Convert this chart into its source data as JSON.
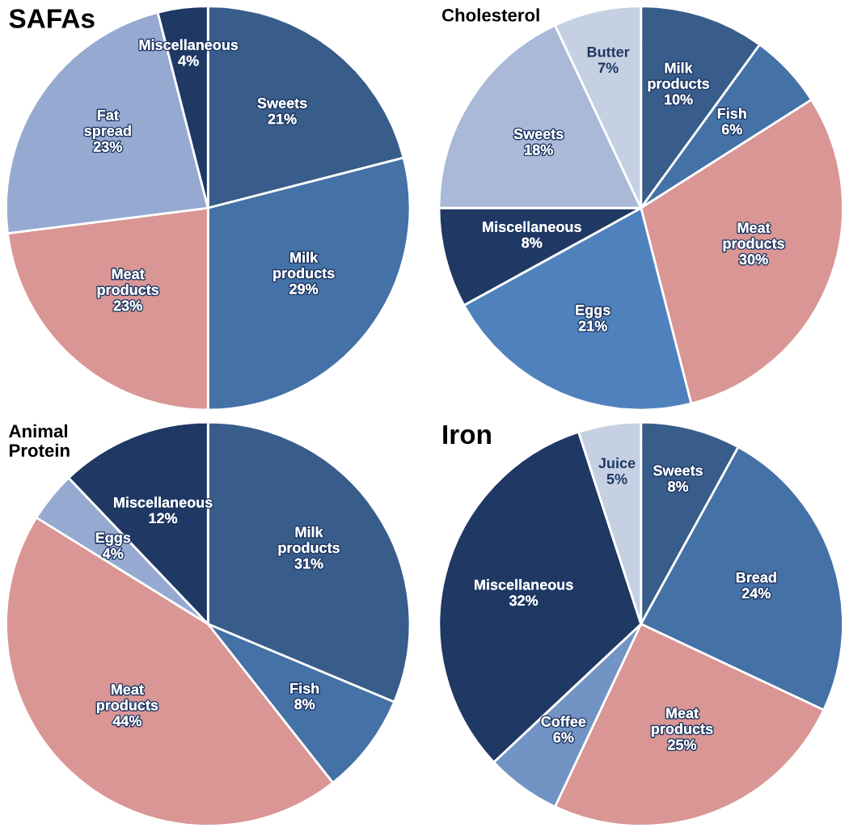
{
  "chart_data": [
    {
      "type": "pie",
      "title": "SAFAs",
      "categories": [
        "Sweets",
        "Milk products",
        "Meat products",
        "Fat spread",
        "Miscellaneous"
      ],
      "values": [
        21,
        29,
        23,
        23,
        4
      ],
      "value_labels": [
        "21%",
        "29%",
        "23%",
        "23%",
        "4%"
      ],
      "colors": [
        "#385d8a",
        "#4471a6",
        "#d99694",
        "#95a9d1",
        "#1f3864"
      ]
    },
    {
      "type": "pie",
      "title": "Cholesterol",
      "categories": [
        "Milk products",
        "Fish",
        "Meat products",
        "Eggs",
        "Miscellaneous",
        "Sweets",
        "Butter"
      ],
      "values": [
        10,
        6,
        30,
        21,
        8,
        18,
        7
      ],
      "value_labels": [
        "10%",
        "6%",
        "30%",
        "21%",
        "8%",
        "18%",
        "7%"
      ],
      "colors": [
        "#385d8a",
        "#4471a6",
        "#d99694",
        "#4f81bd",
        "#1f3864",
        "#a9b9d7",
        "#c5d0e3"
      ]
    },
    {
      "type": "pie",
      "title": "Animal\nProtein",
      "categories": [
        "Milk products",
        "Fish",
        "Meat products",
        "Eggs",
        "Miscellaneous"
      ],
      "values": [
        31,
        8,
        44,
        4,
        12
      ],
      "value_labels": [
        "31%",
        "8%",
        "44%",
        "4%",
        "12%"
      ],
      "colors": [
        "#385d8a",
        "#4471a6",
        "#d99694",
        "#95a9d1",
        "#1f3864"
      ]
    },
    {
      "type": "pie",
      "title": "Iron",
      "categories": [
        "Sweets",
        "Bread",
        "Meat products",
        "Coffee",
        "Miscellaneous",
        "Juice"
      ],
      "values": [
        8,
        24,
        25,
        6,
        32,
        5
      ],
      "value_labels": [
        "8%",
        "24%",
        "25%",
        "6%",
        "32%",
        "5%"
      ],
      "colors": [
        "#385d8a",
        "#4471a6",
        "#d99694",
        "#7294c4",
        "#1f3864",
        "#c5d0e3"
      ]
    }
  ]
}
